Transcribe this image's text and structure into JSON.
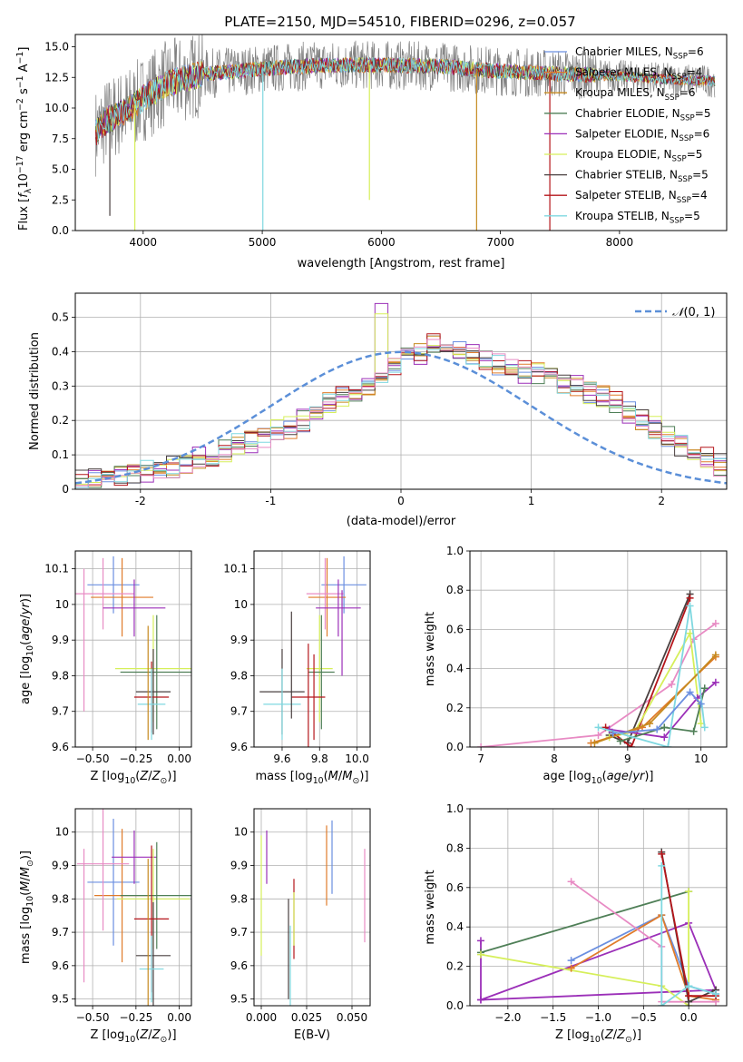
{
  "figure": {
    "title": "PLATE=2150, MJD=54510, FIBERID=0296, z=0.057"
  },
  "colors": {
    "ChabrierMILES": "#6b8fe0",
    "SalpeterMILES": "#e07b2a",
    "KroupaMILES": "#c68a1f",
    "ChabrierELODIE": "#4f7f57",
    "SalpeterELODIE": "#9b2fb8",
    "KroupaELODIE": "#d6ef5a",
    "ChabrierSTELIB": "#4a4040",
    "SalpeterSTELIB": "#b5161b",
    "KroupaSTELIB": "#7fd8e0",
    "pink": "#e88bc4",
    "normal": "#5b8fd8"
  },
  "chart_data": [
    {
      "id": "spectrum",
      "type": "line",
      "title": "PLATE=2150, MJD=54510, FIBERID=0296, z=0.057",
      "xlabel": "wavelength [Angstrom, rest frame]",
      "ylabel": "Flux [f_λ 10^-17 erg cm^-2 s^-1 A^-1]",
      "xlim": [
        3430,
        8900
      ],
      "ylim": [
        0,
        16
      ],
      "xticks": [
        "4000",
        "5000",
        "6000",
        "7000",
        "8000"
      ],
      "yticks": [
        "0.0",
        "2.5",
        "5.0",
        "7.5",
        "10.0",
        "12.5",
        "15.0"
      ],
      "grid": false,
      "legend_position": "right",
      "legend": [
        {
          "base": "Chabrier MILES, N",
          "sub": "SSP",
          "tail": "=6",
          "color_key": "ChabrierMILES"
        },
        {
          "base": "Salpeter MILES, N",
          "sub": "SSP",
          "tail": "=4",
          "color_key": "SalpeterMILES"
        },
        {
          "base": "Kroupa MILES, N",
          "sub": "SSP",
          "tail": "=6",
          "color_key": "KroupaMILES"
        },
        {
          "base": "Chabrier ELODIE, N",
          "sub": "SSP",
          "tail": "=5",
          "color_key": "ChabrierELODIE"
        },
        {
          "base": "Salpeter ELODIE, N",
          "sub": "SSP",
          "tail": "=6",
          "color_key": "SalpeterELODIE"
        },
        {
          "base": "Kroupa ELODIE, N",
          "sub": "SSP",
          "tail": "=5",
          "color_key": "KroupaELODIE"
        },
        {
          "base": "Chabrier STELIB, N",
          "sub": "SSP",
          "tail": "=5",
          "color_key": "ChabrierSTELIB"
        },
        {
          "base": "Salpeter STELIB, N",
          "sub": "SSP",
          "tail": "=4",
          "color_key": "SalpeterSTELIB"
        },
        {
          "base": "Kroupa STELIB, N",
          "sub": "SSP",
          "tail": "=5",
          "color_key": "KroupaSTELIB"
        }
      ],
      "trend": {
        "x": [
          3600,
          3700,
          3800,
          3900,
          4000,
          4200,
          4500,
          4800,
          5000,
          5500,
          6000,
          6500,
          7000,
          7500,
          8000,
          8500,
          8800
        ],
        "y": [
          8.0,
          9.0,
          9.5,
          10.0,
          10.8,
          12.0,
          12.8,
          13.0,
          13.2,
          13.5,
          13.5,
          13.4,
          13.0,
          12.8,
          12.6,
          12.3,
          12.2
        ]
      },
      "spikes": [
        {
          "x": 3930,
          "ymin": 0,
          "color_key": "KroupaELODIE"
        },
        {
          "x": 5005,
          "ymin": 0,
          "color_key": "KroupaSTELIB"
        },
        {
          "x": 6800,
          "ymin": 0,
          "color_key": "KroupaMILES"
        },
        {
          "x": 7415,
          "ymin": 0,
          "color_key": "SalpeterSTELIB"
        },
        {
          "x": 5900,
          "ymin": 2.5,
          "color_key": "KroupaELODIE"
        },
        {
          "x": 3720,
          "ymin": 1.2,
          "color_key": "ChabrierSTELIB"
        }
      ]
    },
    {
      "id": "residual_hist",
      "type": "step",
      "xlabel": "(data-model)/error",
      "ylabel": "Normed distribution",
      "xlim": [
        -2.5,
        2.5
      ],
      "ylim": [
        0,
        0.57
      ],
      "xticks": [
        -2,
        -1,
        0,
        1,
        2
      ],
      "yticks": [
        0.0,
        0.1,
        0.2,
        0.3,
        0.4,
        0.5
      ],
      "grid": true,
      "legend_position": "top-right",
      "legend": [
        {
          "label": "N(0,1)",
          "color_key": "normal",
          "style": "dashed"
        }
      ],
      "bin_width": 0.1,
      "bin_start": -2.5,
      "base_values": [
        0.025,
        0.03,
        0.04,
        0.045,
        0.05,
        0.05,
        0.055,
        0.065,
        0.08,
        0.09,
        0.1,
        0.11,
        0.13,
        0.14,
        0.15,
        0.17,
        0.18,
        0.2,
        0.22,
        0.25,
        0.27,
        0.29,
        0.3,
        0.33,
        0.36,
        0.38,
        0.39,
        0.42,
        0.41,
        0.4,
        0.39,
        0.37,
        0.36,
        0.35,
        0.34,
        0.34,
        0.33,
        0.31,
        0.3,
        0.28,
        0.27,
        0.25,
        0.22,
        0.2,
        0.18,
        0.15,
        0.13,
        0.11,
        0.09,
        0.07
      ],
      "series_keys": [
        "ChabrierMILES",
        "SalpeterMILES",
        "KroupaMILES",
        "ChabrierELODIE",
        "SalpeterELODIE",
        "KroupaELODIE",
        "ChabrierSTELIB",
        "SalpeterSTELIB",
        "KroupaSTELIB",
        "pink"
      ]
    },
    {
      "id": "age_vs_Z",
      "type": "errorbar",
      "xlabel": "Z [log10(Z/Z☉)]",
      "ylabel": "age  [log10(age/yr)]",
      "xlim": [
        -0.6,
        0.07
      ],
      "ylim": [
        9.6,
        10.15
      ],
      "xticks": [
        "−0.50",
        "−0.25",
        "0.00"
      ],
      "xtick_values": [
        -0.5,
        -0.25,
        0.0
      ],
      "yticks": [
        9.6,
        9.7,
        9.8,
        9.9,
        10.0,
        10.1
      ],
      "grid": true,
      "points": [
        {
          "x": -0.38,
          "xe": 0.15,
          "y": 10.055,
          "ye": 0.08,
          "color_key": "ChabrierMILES"
        },
        {
          "x": -0.33,
          "xe": 0.18,
          "y": 10.02,
          "ye": 0.11,
          "color_key": "SalpeterMILES"
        },
        {
          "x": -0.44,
          "xe": 0.18,
          "y": 10.03,
          "ye": 0.1,
          "color_key": "pink"
        },
        {
          "x": -0.26,
          "xe": 0.18,
          "y": 9.99,
          "ye": 0.08,
          "color_key": "SalpeterELODIE"
        },
        {
          "x": -0.15,
          "xe": 0.22,
          "y": 9.82,
          "ye": 0.15,
          "color_key": "KroupaELODIE"
        },
        {
          "x": -0.13,
          "xe": 0.21,
          "y": 9.81,
          "ye": 0.16,
          "color_key": "ChabrierELODIE"
        },
        {
          "x": -0.15,
          "xe": 0.1,
          "y": 9.755,
          "ye": 0.12,
          "color_key": "ChabrierSTELIB"
        },
        {
          "x": -0.16,
          "xe": 0.1,
          "y": 9.74,
          "ye": 0.1,
          "color_key": "SalpeterSTELIB"
        },
        {
          "x": -0.16,
          "xe": 0.08,
          "y": 9.72,
          "ye": 0.1,
          "color_key": "KroupaSTELIB"
        },
        {
          "x": -0.55,
          "xe": 0.0,
          "y": 9.9,
          "ye": 0.2,
          "color_key": "pink"
        },
        {
          "x": -0.18,
          "xe": 0.0,
          "y": 9.78,
          "ye": 0.16,
          "color_key": "KroupaMILES"
        }
      ]
    },
    {
      "id": "age_vs_mass",
      "type": "errorbar",
      "xlabel": "mass [log10(M/M☉)]",
      "xlim": [
        9.45,
        10.07
      ],
      "ylim": [
        9.6,
        10.15
      ],
      "xticks": [
        "9.6",
        "9.8",
        "10.0"
      ],
      "xtick_values": [
        9.6,
        9.8,
        10.0
      ],
      "yticks": [
        9.6,
        9.7,
        9.8,
        9.9,
        10.0,
        10.1
      ],
      "grid": true,
      "points": [
        {
          "x": 9.93,
          "xe": 0.12,
          "y": 10.055,
          "ye": 0.08,
          "color_key": "ChabrierMILES"
        },
        {
          "x": 9.84,
          "xe": 0.1,
          "y": 10.02,
          "ye": 0.11,
          "color_key": "SalpeterMILES"
        },
        {
          "x": 9.83,
          "xe": 0.1,
          "y": 10.03,
          "ye": 0.1,
          "color_key": "pink"
        },
        {
          "x": 9.9,
          "xe": 0.12,
          "y": 9.99,
          "ye": 0.08,
          "color_key": "SalpeterELODIE"
        },
        {
          "x": 9.8,
          "xe": 0.07,
          "y": 9.82,
          "ye": 0.15,
          "color_key": "KroupaELODIE"
        },
        {
          "x": 9.81,
          "xe": 0.07,
          "y": 9.81,
          "ye": 0.16,
          "color_key": "ChabrierELODIE"
        },
        {
          "x": 9.6,
          "xe": 0.12,
          "y": 9.755,
          "ye": 0.12,
          "color_key": "ChabrierSTELIB"
        },
        {
          "x": 9.74,
          "xe": 0.09,
          "y": 9.74,
          "ye": 0.15,
          "color_key": "SalpeterSTELIB"
        },
        {
          "x": 9.6,
          "xe": 0.1,
          "y": 9.72,
          "ye": 0.1,
          "color_key": "KroupaSTELIB"
        },
        {
          "x": 9.65,
          "xe": 0.0,
          "y": 9.83,
          "ye": 0.15,
          "color_key": "ChabrierSTELIB"
        },
        {
          "x": 9.92,
          "xe": 0.0,
          "y": 9.92,
          "ye": 0.12,
          "color_key": "SalpeterELODIE"
        },
        {
          "x": 9.77,
          "xe": 0.0,
          "y": 9.74,
          "ye": 0.12,
          "color_key": "SalpeterSTELIB"
        }
      ]
    },
    {
      "id": "weight_vs_age",
      "type": "line",
      "xlabel": "age  [log10(age/yr)]",
      "ylabel": "mass weight",
      "xlim": [
        6.85,
        10.35
      ],
      "ylim": [
        0,
        1
      ],
      "xticks": [
        7,
        8,
        9,
        10
      ],
      "yticks": [
        "0.0",
        "0.2",
        "0.4",
        "0.6",
        "0.8",
        "1.0"
      ],
      "grid": true,
      "series": [
        {
          "color_key": "pink",
          "x": [
            7.0,
            8.6,
            9.6,
            9.9,
            10.2
          ],
          "y": [
            0.0,
            0.06,
            0.32,
            0.55,
            0.63
          ]
        },
        {
          "color_key": "ChabrierSTELIB",
          "x": [
            8.75,
            9.0,
            9.85
          ],
          "y": [
            0.06,
            0.02,
            0.78
          ]
        },
        {
          "color_key": "SalpeterSTELIB",
          "x": [
            8.7,
            9.05,
            9.85
          ],
          "y": [
            0.1,
            0.0,
            0.76
          ]
        },
        {
          "color_key": "KroupaELODIE",
          "x": [
            8.75,
            9.1,
            9.85,
            10.0
          ],
          "y": [
            0.05,
            0.08,
            0.58,
            0.12
          ]
        },
        {
          "color_key": "SalpeterMILES",
          "x": [
            8.5,
            9.2,
            10.2
          ],
          "y": [
            0.02,
            0.1,
            0.46
          ]
        },
        {
          "color_key": "KroupaMILES",
          "x": [
            8.55,
            9.3,
            10.2
          ],
          "y": [
            0.02,
            0.12,
            0.47
          ]
        },
        {
          "color_key": "SalpeterELODIE",
          "x": [
            8.75,
            9.5,
            9.95,
            10.2
          ],
          "y": [
            0.09,
            0.05,
            0.25,
            0.33
          ]
        },
        {
          "color_key": "ChabrierELODIE",
          "x": [
            8.9,
            9.5,
            9.9,
            10.05
          ],
          "y": [
            0.03,
            0.1,
            0.08,
            0.3
          ]
        },
        {
          "color_key": "KroupaSTELIB",
          "x": [
            8.6,
            9.55,
            9.85,
            10.05
          ],
          "y": [
            0.1,
            0.0,
            0.72,
            0.1
          ]
        },
        {
          "color_key": "ChabrierMILES",
          "x": [
            8.8,
            9.4,
            9.85,
            10.0
          ],
          "y": [
            0.07,
            0.09,
            0.28,
            0.22
          ]
        }
      ]
    },
    {
      "id": "mass_vs_Z",
      "type": "errorbar",
      "xlabel": "Z [log10(Z/Z☉)]",
      "ylabel": "mass [log10(M/M☉)]",
      "xlim": [
        -0.6,
        0.07
      ],
      "ylim": [
        9.48,
        10.07
      ],
      "xticks": [
        "−0.50",
        "−0.25",
        "0.00"
      ],
      "xtick_values": [
        -0.5,
        -0.25,
        0.0
      ],
      "yticks": [
        9.5,
        9.6,
        9.7,
        9.8,
        9.9,
        10.0
      ],
      "grid": true,
      "points": [
        {
          "x": -0.38,
          "xe": 0.15,
          "y": 9.85,
          "ye": 0.19,
          "color_key": "ChabrierMILES"
        },
        {
          "x": -0.33,
          "xe": 0.16,
          "y": 9.81,
          "ye": 0.2,
          "color_key": "SalpeterMILES"
        },
        {
          "x": -0.44,
          "xe": 0.15,
          "y": 9.905,
          "ye": 0.2,
          "color_key": "pink"
        },
        {
          "x": -0.26,
          "xe": 0.13,
          "y": 9.925,
          "ye": 0.08,
          "color_key": "SalpeterELODIE"
        },
        {
          "x": -0.15,
          "xe": 0.21,
          "y": 9.8,
          "ye": 0.15,
          "color_key": "KroupaELODIE"
        },
        {
          "x": -0.13,
          "xe": 0.21,
          "y": 9.81,
          "ye": 0.16,
          "color_key": "ChabrierELODIE"
        },
        {
          "x": -0.15,
          "xe": 0.1,
          "y": 9.63,
          "ye": 0.16,
          "color_key": "ChabrierSTELIB"
        },
        {
          "x": -0.16,
          "xe": 0.1,
          "y": 9.74,
          "ye": 0.22,
          "color_key": "SalpeterSTELIB"
        },
        {
          "x": -0.16,
          "xe": 0.07,
          "y": 9.59,
          "ye": 0.1,
          "color_key": "KroupaSTELIB"
        },
        {
          "x": -0.55,
          "xe": 0.0,
          "y": 9.75,
          "ye": 0.2,
          "color_key": "pink"
        },
        {
          "x": -0.18,
          "xe": 0.0,
          "y": 9.7,
          "ye": 0.22,
          "color_key": "KroupaMILES"
        }
      ]
    },
    {
      "id": "mass_vs_ebv",
      "type": "errorbar",
      "xlabel": "E(B-V)",
      "xlim": [
        -0.004,
        0.06
      ],
      "ylim": [
        9.48,
        10.07
      ],
      "xticks": [
        "0.000",
        "0.025",
        "0.050"
      ],
      "xtick_values": [
        0.0,
        0.025,
        0.05
      ],
      "yticks": [
        9.5,
        9.6,
        9.7,
        9.8,
        9.9,
        10.0
      ],
      "grid": true,
      "points": [
        {
          "x": 0.0,
          "xe": 0.0,
          "y": 9.81,
          "ye": 0.18,
          "color_key": "KroupaELODIE"
        },
        {
          "x": 0.003,
          "xe": 0.0,
          "y": 9.925,
          "ye": 0.08,
          "color_key": "SalpeterELODIE"
        },
        {
          "x": 0.015,
          "xe": 0.0,
          "y": 9.65,
          "ye": 0.15,
          "color_key": "ChabrierSTELIB"
        },
        {
          "x": 0.016,
          "xe": 0.0,
          "y": 9.6,
          "ye": 0.12,
          "color_key": "KroupaSTELIB"
        },
        {
          "x": 0.018,
          "xe": 0.0,
          "y": 9.74,
          "ye": 0.12,
          "color_key": "SalpeterSTELIB"
        },
        {
          "x": 0.018,
          "xe": 0.0,
          "y": 9.74,
          "ye": 0.08,
          "color_key": "KroupaELODIE"
        },
        {
          "x": 0.036,
          "xe": 0.0,
          "y": 9.9,
          "ye": 0.12,
          "color_key": "SalpeterMILES"
        },
        {
          "x": 0.039,
          "xe": 0.0,
          "y": 9.925,
          "ye": 0.11,
          "color_key": "ChabrierMILES"
        },
        {
          "x": 0.057,
          "xe": 0.0,
          "y": 9.81,
          "ye": 0.14,
          "color_key": "pink"
        }
      ]
    },
    {
      "id": "weight_vs_Z",
      "type": "line",
      "xlabel": "Z [log10(Z/Z☉)]",
      "ylabel": "mass weight",
      "xlim": [
        -2.42,
        0.42
      ],
      "ylim": [
        0,
        1
      ],
      "xticks": [
        "−2.0",
        "−1.5",
        "−1.0",
        "−0.5",
        "0.0"
      ],
      "xtick_values": [
        -2.0,
        -1.5,
        -1.0,
        -0.5,
        0.0
      ],
      "yticks": [
        "0.0",
        "0.2",
        "0.4",
        "0.6",
        "0.8",
        "1.0"
      ],
      "grid": true,
      "series": [
        {
          "color_key": "SalpeterELODIE",
          "x": [
            -2.3,
            -2.3,
            0.3,
            0.0,
            -2.3
          ],
          "y": [
            0.33,
            0.03,
            0.08,
            0.42,
            0.03
          ]
        },
        {
          "color_key": "ChabrierELODIE",
          "x": [
            -2.3,
            0.0
          ],
          "y": [
            0.27,
            0.58
          ]
        },
        {
          "color_key": "KroupaELODIE",
          "x": [
            -2.3,
            -0.3,
            0.0,
            0.0
          ],
          "y": [
            0.26,
            0.1,
            0.0,
            0.58
          ]
        },
        {
          "color_key": "ChabrierMILES",
          "x": [
            -1.3,
            -0.3,
            0.0,
            0.3
          ],
          "y": [
            0.23,
            0.46,
            0.1,
            0.06
          ]
        },
        {
          "color_key": "SalpeterMILES",
          "x": [
            -1.3,
            -0.3,
            0.0,
            0.3
          ],
          "y": [
            0.19,
            0.46,
            0.05,
            0.03
          ]
        },
        {
          "color_key": "pink",
          "x": [
            -1.3,
            -0.3,
            -0.3,
            0.3
          ],
          "y": [
            0.63,
            0.3,
            0.02,
            0.02
          ]
        },
        {
          "color_key": "ChabrierSTELIB",
          "x": [
            -0.3,
            0.0,
            0.3
          ],
          "y": [
            0.78,
            0.02,
            0.08
          ]
        },
        {
          "color_key": "SalpeterSTELIB",
          "x": [
            -0.3,
            0.0,
            0.3
          ],
          "y": [
            0.77,
            0.05,
            0.05
          ]
        },
        {
          "color_key": "KroupaSTELIB",
          "x": [
            -0.3,
            -0.3,
            0.0,
            0.3
          ],
          "y": [
            0.71,
            0.0,
            0.1,
            0.06
          ]
        }
      ]
    }
  ]
}
